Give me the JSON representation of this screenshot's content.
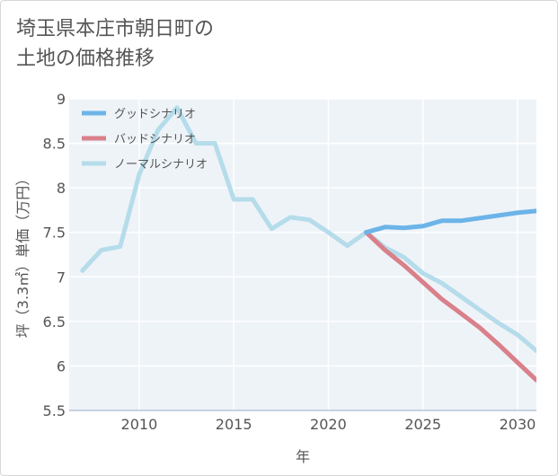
{
  "title_lines": [
    "埼玉県本庄市朝日町の",
    "土地の価格推移"
  ],
  "chart_data": {
    "type": "line",
    "title": "埼玉県本庄市朝日町の土地の価格推移",
    "xlabel": "年",
    "ylabel": "坪（3.3㎡）単価（万円）",
    "xlim": [
      2006.3,
      2031
    ],
    "ylim": [
      5.5,
      9
    ],
    "xticks": [
      2010,
      2015,
      2020,
      2025,
      2030
    ],
    "yticks": [
      5.5,
      6,
      6.5,
      7,
      7.5,
      8,
      8.5,
      9
    ],
    "xtick_labels": [
      "2010",
      "2015",
      "2020",
      "2025",
      "2030"
    ],
    "ytick_labels": [
      "5.5",
      "6",
      "6.5",
      "7",
      "7.5",
      "8",
      "8.5",
      "9"
    ],
    "grid": true,
    "legend_position": "top-left",
    "series": [
      {
        "name": "グッドシナリオ",
        "color": "#6cb4e8",
        "x": [
          2022,
          2023,
          2024,
          2025,
          2026,
          2027,
          2028,
          2029,
          2030,
          2031
        ],
        "y": [
          7.5,
          7.56,
          7.55,
          7.57,
          7.63,
          7.63,
          7.66,
          7.69,
          7.72,
          7.74
        ]
      },
      {
        "name": "バッドシナリオ",
        "color": "#d9808a",
        "x": [
          2022,
          2023,
          2024,
          2025,
          2026,
          2027,
          2028,
          2029,
          2030,
          2031
        ],
        "y": [
          7.5,
          7.3,
          7.13,
          6.94,
          6.75,
          6.59,
          6.43,
          6.24,
          6.04,
          5.84
        ]
      },
      {
        "name": "ノーマルシナリオ",
        "color": "#b5dcea",
        "x": [
          2007,
          2008,
          2009,
          2010,
          2011,
          2012,
          2013,
          2014,
          2015,
          2016,
          2017,
          2018,
          2019,
          2020,
          2021,
          2022,
          2023,
          2024,
          2025,
          2026,
          2027,
          2028,
          2029,
          2030,
          2031
        ],
        "y": [
          7.07,
          7.3,
          7.34,
          8.15,
          8.65,
          8.9,
          8.5,
          8.5,
          7.87,
          7.87,
          7.54,
          7.67,
          7.64,
          7.5,
          7.35,
          7.5,
          7.33,
          7.22,
          7.04,
          6.93,
          6.78,
          6.63,
          6.48,
          6.35,
          6.17
        ]
      }
    ]
  }
}
